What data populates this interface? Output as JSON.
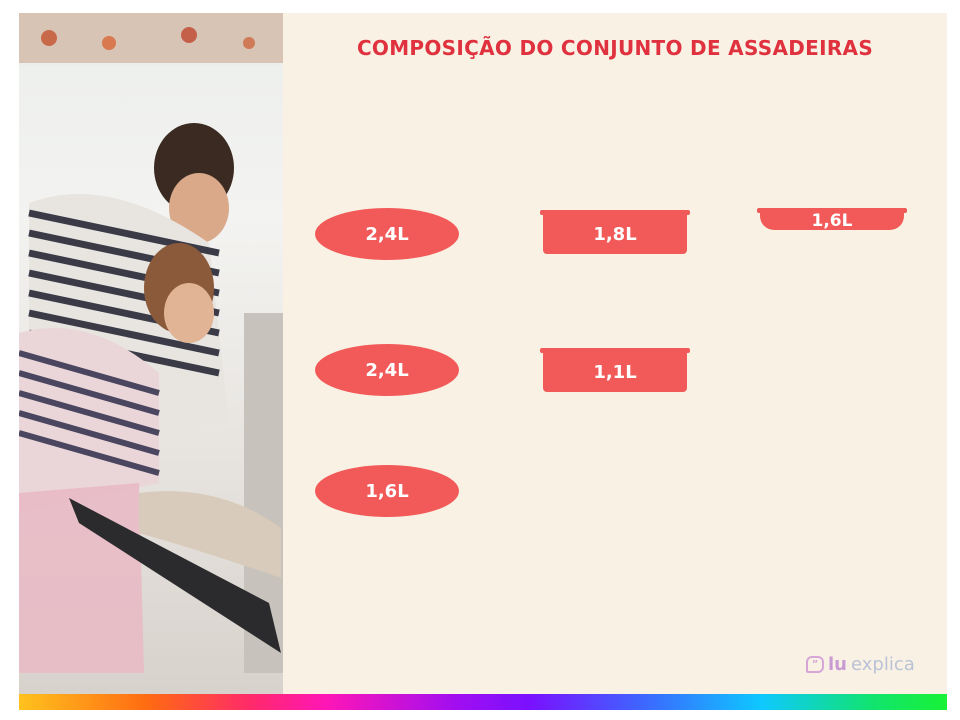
{
  "title": "COMPOSIÇÃO DO CONJUNTO DE ASSADEIRAS",
  "pans": [
    {
      "shape": "oval",
      "label": "2,4L"
    },
    {
      "shape": "rectangular",
      "label": "1,8L"
    },
    {
      "shape": "shallow",
      "label": "1,6L"
    },
    {
      "shape": "oval",
      "label": "2,4L"
    },
    {
      "shape": "rectangular",
      "label": "1,1L"
    },
    {
      "shape": "oval",
      "label": "1,6L"
    }
  ],
  "logo": {
    "text_a": "lu",
    "text_b": "explica"
  },
  "colors": {
    "accent": "#e0313f",
    "pan": "#f25a59",
    "background": "#f9f1e3"
  }
}
